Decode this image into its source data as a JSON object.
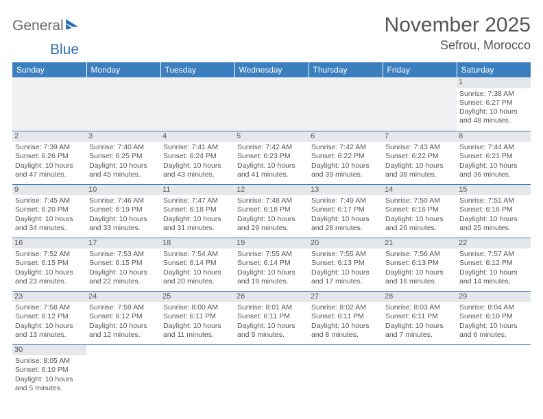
{
  "logo": {
    "text1": "General",
    "text2": "Blue",
    "color1": "#6a6a6a",
    "color2": "#2b6fb3"
  },
  "title": "November 2025",
  "location": "Sefrou, Morocco",
  "day_headers": [
    "Sunday",
    "Monday",
    "Tuesday",
    "Wednesday",
    "Thursday",
    "Friday",
    "Saturday"
  ],
  "header_bg": "#3b7fbf",
  "weeks": [
    [
      null,
      null,
      null,
      null,
      null,
      null,
      {
        "d": "1",
        "sr": "7:38 AM",
        "ss": "6:27 PM",
        "dl": "10 hours and 48 minutes."
      }
    ],
    [
      {
        "d": "2",
        "sr": "7:39 AM",
        "ss": "6:26 PM",
        "dl": "10 hours and 47 minutes."
      },
      {
        "d": "3",
        "sr": "7:40 AM",
        "ss": "6:25 PM",
        "dl": "10 hours and 45 minutes."
      },
      {
        "d": "4",
        "sr": "7:41 AM",
        "ss": "6:24 PM",
        "dl": "10 hours and 43 minutes."
      },
      {
        "d": "5",
        "sr": "7:42 AM",
        "ss": "6:23 PM",
        "dl": "10 hours and 41 minutes."
      },
      {
        "d": "6",
        "sr": "7:42 AM",
        "ss": "6:22 PM",
        "dl": "10 hours and 39 minutes."
      },
      {
        "d": "7",
        "sr": "7:43 AM",
        "ss": "6:22 PM",
        "dl": "10 hours and 38 minutes."
      },
      {
        "d": "8",
        "sr": "7:44 AM",
        "ss": "6:21 PM",
        "dl": "10 hours and 36 minutes."
      }
    ],
    [
      {
        "d": "9",
        "sr": "7:45 AM",
        "ss": "6:20 PM",
        "dl": "10 hours and 34 minutes."
      },
      {
        "d": "10",
        "sr": "7:46 AM",
        "ss": "6:19 PM",
        "dl": "10 hours and 33 minutes."
      },
      {
        "d": "11",
        "sr": "7:47 AM",
        "ss": "6:18 PM",
        "dl": "10 hours and 31 minutes."
      },
      {
        "d": "12",
        "sr": "7:48 AM",
        "ss": "6:18 PM",
        "dl": "10 hours and 29 minutes."
      },
      {
        "d": "13",
        "sr": "7:49 AM",
        "ss": "6:17 PM",
        "dl": "10 hours and 28 minutes."
      },
      {
        "d": "14",
        "sr": "7:50 AM",
        "ss": "6:16 PM",
        "dl": "10 hours and 26 minutes."
      },
      {
        "d": "15",
        "sr": "7:51 AM",
        "ss": "6:16 PM",
        "dl": "10 hours and 25 minutes."
      }
    ],
    [
      {
        "d": "16",
        "sr": "7:52 AM",
        "ss": "6:15 PM",
        "dl": "10 hours and 23 minutes."
      },
      {
        "d": "17",
        "sr": "7:53 AM",
        "ss": "6:15 PM",
        "dl": "10 hours and 22 minutes."
      },
      {
        "d": "18",
        "sr": "7:54 AM",
        "ss": "6:14 PM",
        "dl": "10 hours and 20 minutes."
      },
      {
        "d": "19",
        "sr": "7:55 AM",
        "ss": "6:14 PM",
        "dl": "10 hours and 19 minutes."
      },
      {
        "d": "20",
        "sr": "7:55 AM",
        "ss": "6:13 PM",
        "dl": "10 hours and 17 minutes."
      },
      {
        "d": "21",
        "sr": "7:56 AM",
        "ss": "6:13 PM",
        "dl": "10 hours and 16 minutes."
      },
      {
        "d": "22",
        "sr": "7:57 AM",
        "ss": "6:12 PM",
        "dl": "10 hours and 14 minutes."
      }
    ],
    [
      {
        "d": "23",
        "sr": "7:58 AM",
        "ss": "6:12 PM",
        "dl": "10 hours and 13 minutes."
      },
      {
        "d": "24",
        "sr": "7:59 AM",
        "ss": "6:12 PM",
        "dl": "10 hours and 12 minutes."
      },
      {
        "d": "25",
        "sr": "8:00 AM",
        "ss": "6:11 PM",
        "dl": "10 hours and 11 minutes."
      },
      {
        "d": "26",
        "sr": "8:01 AM",
        "ss": "6:11 PM",
        "dl": "10 hours and 9 minutes."
      },
      {
        "d": "27",
        "sr": "8:02 AM",
        "ss": "6:11 PM",
        "dl": "10 hours and 8 minutes."
      },
      {
        "d": "28",
        "sr": "8:03 AM",
        "ss": "6:11 PM",
        "dl": "10 hours and 7 minutes."
      },
      {
        "d": "29",
        "sr": "8:04 AM",
        "ss": "6:10 PM",
        "dl": "10 hours and 6 minutes."
      }
    ],
    [
      {
        "d": "30",
        "sr": "8:05 AM",
        "ss": "6:10 PM",
        "dl": "10 hours and 5 minutes."
      },
      null,
      null,
      null,
      null,
      null,
      null
    ]
  ],
  "labels": {
    "sunrise": "Sunrise: ",
    "sunset": "Sunset: ",
    "daylight": "Daylight: "
  }
}
